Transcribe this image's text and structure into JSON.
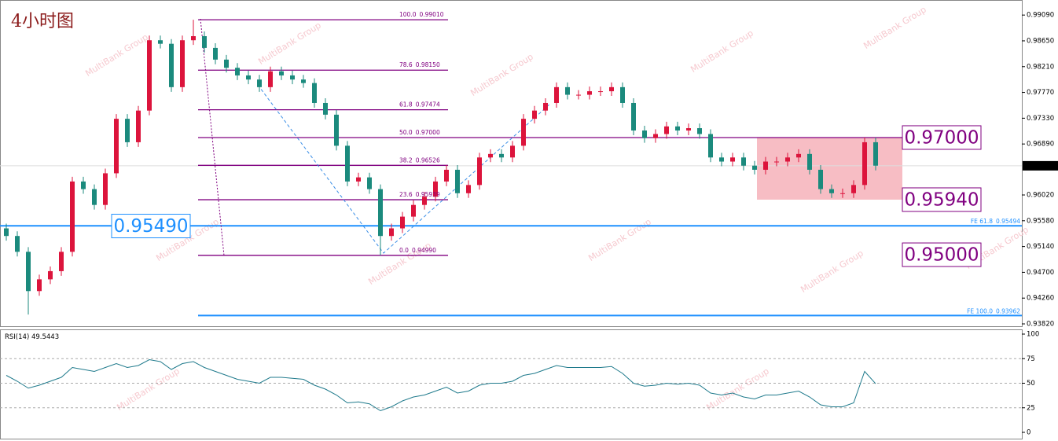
{
  "chart_data": [
    {
      "type": "candlestick",
      "title": "4小时图",
      "watermark": "MultiBank Group",
      "open": [
        0.9545,
        0.9532,
        0.9505,
        0.9438,
        0.9458,
        0.9472,
        0.9505,
        0.9625,
        0.9612,
        0.9585,
        0.9639,
        0.9732,
        0.9692,
        0.9746,
        0.9866,
        0.986,
        0.9786,
        0.9866,
        0.9873,
        0.9853,
        0.9833,
        0.9819,
        0.9806,
        0.9799,
        0.9786,
        0.9813,
        0.9806,
        0.9799,
        0.9793,
        0.9759,
        0.9739,
        0.9686,
        0.9625,
        0.9632,
        0.9612,
        0.9532,
        0.9545,
        0.9565,
        0.9585,
        0.9599,
        0.9625,
        0.9645,
        0.9605,
        0.9619,
        0.9666,
        0.9672,
        0.9666,
        0.9686,
        0.9732,
        0.9746,
        0.9759,
        0.9786,
        0.9773,
        0.9773,
        0.9779,
        0.9779,
        0.9786,
        0.9759,
        0.9712,
        0.9699,
        0.9706,
        0.9719,
        0.9712,
        0.9716,
        0.9706,
        0.9666,
        0.9659,
        0.9666,
        0.9652,
        0.9645,
        0.9659,
        0.9659,
        0.9666,
        0.9672,
        0.9645,
        0.9612,
        0.9605,
        0.9605,
        0.9619,
        0.9692
      ],
      "high": [
        0.9553,
        0.954,
        0.9513,
        0.9466,
        0.948,
        0.9513,
        0.9633,
        0.9633,
        0.962,
        0.9647,
        0.974,
        0.974,
        0.9754,
        0.9874,
        0.9874,
        0.9868,
        0.9874,
        0.9901,
        0.9881,
        0.9861,
        0.9841,
        0.9827,
        0.9814,
        0.9807,
        0.9821,
        0.9821,
        0.9814,
        0.9807,
        0.9801,
        0.9767,
        0.9747,
        0.9694,
        0.964,
        0.964,
        0.962,
        0.9553,
        0.9573,
        0.9593,
        0.9607,
        0.9633,
        0.9653,
        0.9653,
        0.9627,
        0.9674,
        0.968,
        0.968,
        0.9694,
        0.974,
        0.9754,
        0.9767,
        0.9794,
        0.9794,
        0.9781,
        0.9787,
        0.9787,
        0.9794,
        0.9794,
        0.9767,
        0.972,
        0.9714,
        0.9727,
        0.9727,
        0.9724,
        0.9724,
        0.9714,
        0.9674,
        0.9674,
        0.9674,
        0.966,
        0.9667,
        0.9667,
        0.9674,
        0.968,
        0.968,
        0.9653,
        0.962,
        0.9613,
        0.9627,
        0.97,
        0.97
      ],
      "low": [
        0.9524,
        0.9497,
        0.9398,
        0.943,
        0.945,
        0.9464,
        0.9497,
        0.9604,
        0.9577,
        0.9577,
        0.9631,
        0.9684,
        0.9684,
        0.9738,
        0.9852,
        0.9778,
        0.9778,
        0.9858,
        0.9845,
        0.9825,
        0.9811,
        0.9798,
        0.9791,
        0.9778,
        0.9778,
        0.9798,
        0.9791,
        0.9785,
        0.9751,
        0.9731,
        0.9678,
        0.9617,
        0.9617,
        0.9604,
        0.9499,
        0.9524,
        0.9537,
        0.9557,
        0.9577,
        0.9591,
        0.9617,
        0.9597,
        0.9597,
        0.9611,
        0.9658,
        0.9658,
        0.9658,
        0.9678,
        0.9724,
        0.9738,
        0.9751,
        0.9765,
        0.9765,
        0.9765,
        0.9771,
        0.9771,
        0.9751,
        0.9704,
        0.9691,
        0.9691,
        0.9698,
        0.9704,
        0.9704,
        0.9698,
        0.9658,
        0.9651,
        0.9651,
        0.9644,
        0.9637,
        0.9637,
        0.9651,
        0.9651,
        0.9658,
        0.9637,
        0.9604,
        0.9597,
        0.9597,
        0.9597,
        0.9611,
        0.9644
      ],
      "close": [
        0.9532,
        0.9505,
        0.9438,
        0.9458,
        0.9472,
        0.9505,
        0.9625,
        0.9612,
        0.9585,
        0.9639,
        0.9732,
        0.9692,
        0.9746,
        0.9866,
        0.986,
        0.9786,
        0.9866,
        0.9873,
        0.9853,
        0.9833,
        0.9819,
        0.9806,
        0.9799,
        0.9786,
        0.9813,
        0.9806,
        0.9799,
        0.9793,
        0.9759,
        0.9739,
        0.9686,
        0.9625,
        0.9632,
        0.9612,
        0.9532,
        0.9545,
        0.9565,
        0.9585,
        0.9599,
        0.9625,
        0.9645,
        0.9605,
        0.9619,
        0.9666,
        0.9672,
        0.9666,
        0.9686,
        0.9732,
        0.9746,
        0.9759,
        0.9786,
        0.9773,
        0.9773,
        0.9779,
        0.9779,
        0.9786,
        0.9759,
        0.9712,
        0.9699,
        0.9706,
        0.9719,
        0.9712,
        0.9716,
        0.9706,
        0.9666,
        0.9659,
        0.9666,
        0.9652,
        0.9645,
        0.9659,
        0.9659,
        0.9666,
        0.9672,
        0.9645,
        0.9612,
        0.9605,
        0.9605,
        0.9619,
        0.9692,
        0.9652
      ],
      "up_color": "#dc143c",
      "down_color": "#1b8a7d",
      "ylim": [
        0.9378,
        0.9928
      ],
      "yticks": [
        {
          "value": 0.9909,
          "label": "0.99090"
        },
        {
          "value": 0.9865,
          "label": "0.98650"
        },
        {
          "value": 0.9821,
          "label": "0.98210"
        },
        {
          "value": 0.9777,
          "label": "0.97770"
        },
        {
          "value": 0.9733,
          "label": "0.97330"
        },
        {
          "value": 0.9689,
          "label": "0.96890"
        },
        {
          "value": 0.9602,
          "label": "0.96020"
        },
        {
          "value": 0.9558,
          "label": "0.95580"
        },
        {
          "value": 0.9514,
          "label": "0.95140"
        },
        {
          "value": 0.947,
          "label": "0.94700"
        },
        {
          "value": 0.9426,
          "label": "0.94260"
        },
        {
          "value": 0.9382,
          "label": "0.93820"
        }
      ],
      "current_price": {
        "value": 0.96518,
        "label": "0.96518"
      },
      "fib_color": "#800080",
      "fibonacci": [
        {
          "level": "100.0",
          "price": 0.9901,
          "label": "0.99010"
        },
        {
          "level": "78.6",
          "price": 0.9815,
          "label": "0.98150"
        },
        {
          "level": "61.8",
          "price": 0.97474,
          "label": "0.97474"
        },
        {
          "level": "50.0",
          "price": 0.97,
          "label": "0.97000"
        },
        {
          "level": "38.2",
          "price": 0.96526,
          "label": "0.96526"
        },
        {
          "level": "23.6",
          "price": 0.95939,
          "label": "0.95939"
        },
        {
          "level": "0.0",
          "price": 0.9499,
          "label": "0.94990"
        }
      ],
      "price_boxes": [
        {
          "value": 0.97,
          "label": "0.97000"
        },
        {
          "value": 0.9594,
          "label": "0.95940"
        },
        {
          "value": 0.95,
          "label": "0.95000"
        }
      ],
      "left_box": {
        "value": 0.9549,
        "label": "0.95490"
      },
      "fe_color": "#1e90ff",
      "fe_lines": [
        {
          "name": "FE 61.8",
          "value": 0.95494,
          "label": "0.95494"
        },
        {
          "name": "FE 100.0",
          "value": 0.93962,
          "label": "0.93962"
        }
      ],
      "zone_color": "#f4a7b0"
    },
    {
      "type": "line",
      "name": "RSI(14)",
      "color": "#1f7a8c",
      "values": [
        58,
        52,
        45,
        48,
        52,
        56,
        66,
        64,
        62,
        66,
        70,
        66,
        68,
        74,
        72,
        64,
        70,
        72,
        66,
        62,
        58,
        54,
        52,
        50,
        56,
        56,
        55,
        54,
        48,
        44,
        38,
        30,
        31,
        29,
        22,
        26,
        32,
        36,
        38,
        42,
        46,
        40,
        42,
        48,
        50,
        50,
        52,
        58,
        60,
        64,
        68,
        66,
        66,
        66,
        66,
        67,
        60,
        50,
        47,
        48,
        50,
        49,
        50,
        48,
        40,
        38,
        40,
        36,
        34,
        38,
        38,
        40,
        42,
        36,
        28,
        26,
        26,
        30,
        62,
        49.5443
      ],
      "ylim": [
        -5.6,
        104
      ],
      "yticks": [
        100,
        75,
        50,
        25,
        0
      ],
      "levels": [
        75,
        50,
        25
      ]
    }
  ]
}
